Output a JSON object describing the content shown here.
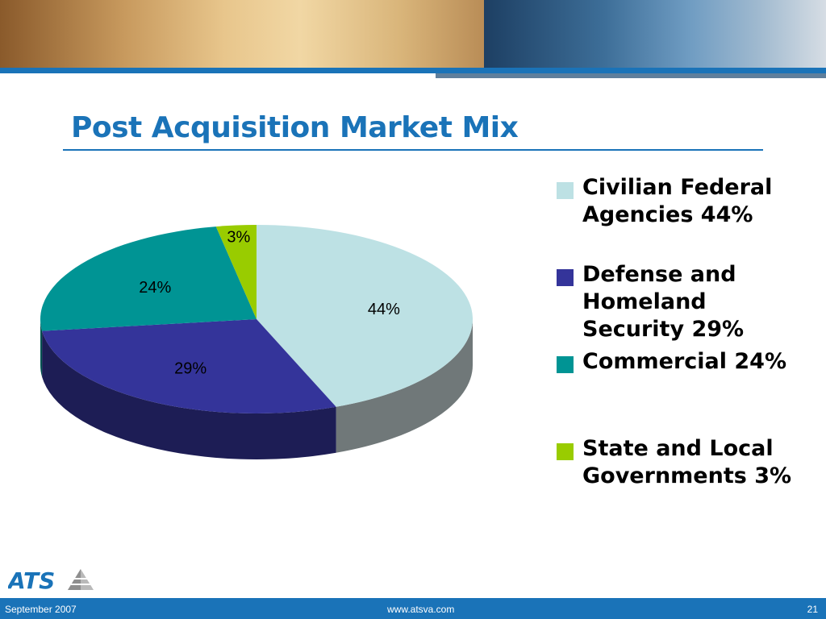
{
  "slide": {
    "title": "Post Acquisition Market Mix",
    "logo_text": "ATS",
    "footer": {
      "date": "September 2007",
      "url": "www.atsva.com",
      "page_number": "21"
    }
  },
  "colors": {
    "accent_blue": "#1a73b8",
    "civilian": "#bde1e4",
    "defense": "#34349a",
    "commercial": "#009494",
    "state_local": "#99cc00"
  },
  "chart_data": {
    "type": "pie",
    "title": "",
    "style": "3d-tilted",
    "legend_position": "right",
    "slices": [
      {
        "legend_label": "Civilian Federal Agencies 44%",
        "value": 44,
        "data_label": "44%",
        "color": "#bde1e4"
      },
      {
        "legend_label": "Defense and Homeland Security 29%",
        "value": 29,
        "data_label": "29%",
        "color": "#34349a"
      },
      {
        "legend_label": "Commercial 24%",
        "value": 24,
        "data_label": "24%",
        "color": "#009494"
      },
      {
        "legend_label": "State and Local Governments 3%",
        "value": 3,
        "data_label": "3%",
        "color": "#99cc00"
      }
    ]
  }
}
